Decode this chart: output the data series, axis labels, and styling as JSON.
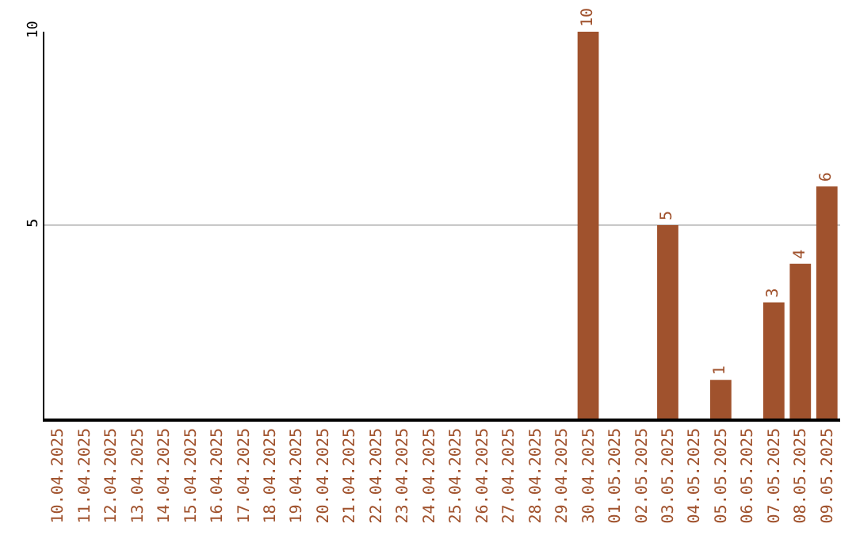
{
  "chart_data": {
    "type": "bar",
    "categories": [
      "10.04.2025",
      "11.04.2025",
      "12.04.2025",
      "13.04.2025",
      "14.04.2025",
      "15.04.2025",
      "16.04.2025",
      "17.04.2025",
      "18.04.2025",
      "19.04.2025",
      "20.04.2025",
      "21.04.2025",
      "22.04.2025",
      "23.04.2025",
      "24.04.2025",
      "25.04.2025",
      "26.04.2025",
      "27.04.2025",
      "28.04.2025",
      "29.04.2025",
      "30.04.2025",
      "01.05.2025",
      "02.05.2025",
      "03.05.2025",
      "04.05.2025",
      "05.05.2025",
      "06.05.2025",
      "07.05.2025",
      "08.05.2025",
      "09.05.2025"
    ],
    "values": [
      0,
      0,
      0,
      0,
      0,
      0,
      0,
      0,
      0,
      0,
      0,
      0,
      0,
      0,
      0,
      0,
      0,
      0,
      0,
      0,
      10,
      0,
      0,
      5,
      0,
      1,
      0,
      3,
      4,
      6
    ],
    "value_labels": [
      null,
      null,
      null,
      null,
      null,
      null,
      null,
      null,
      null,
      null,
      null,
      null,
      null,
      null,
      null,
      null,
      null,
      null,
      null,
      null,
      "10",
      null,
      null,
      "5",
      null,
      "1",
      null,
      "3",
      "4",
      "6"
    ],
    "color": "#a0522d",
    "ylim": [
      0,
      10
    ],
    "yticks": [
      5,
      10
    ],
    "grid": "y",
    "legend": false
  }
}
